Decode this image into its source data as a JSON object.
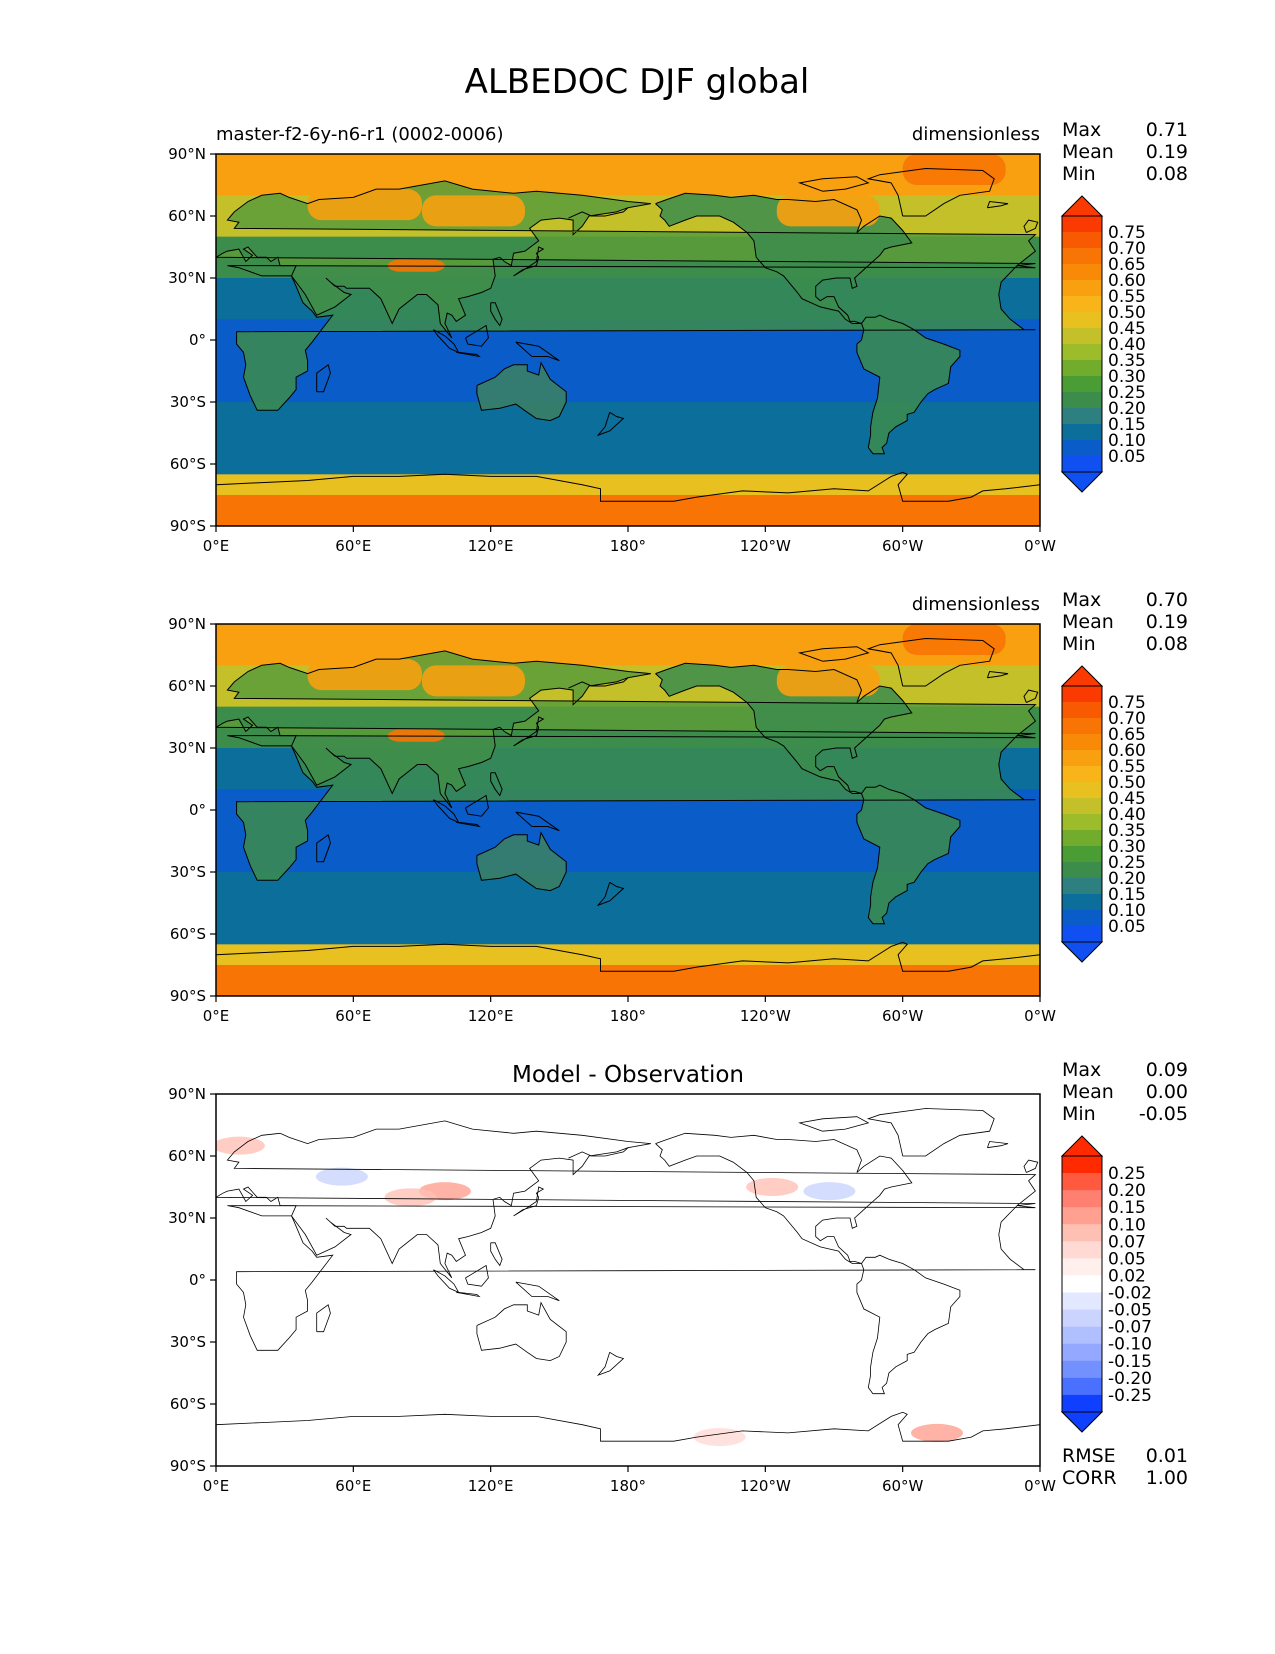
{
  "title": "ALBEDOC DJF global",
  "x_ticks": [
    "0°E",
    "60°E",
    "120°E",
    "180°",
    "120°W",
    "60°W",
    "0°W"
  ],
  "y_ticks": [
    "90°N",
    "60°N",
    "30°N",
    "0°",
    "30°S",
    "60°S",
    "90°S"
  ],
  "stat_labels": {
    "max": "Max",
    "mean": "Mean",
    "min": "Min",
    "rmse": "RMSE",
    "corr": "CORR"
  },
  "colors": {
    "field_scale": [
      "#1050f0",
      "#0a5cc8",
      "#0c6e9a",
      "#2e8080",
      "#3c8c4c",
      "#4a9c34",
      "#72ac2c",
      "#9cbc2a",
      "#c4c02a",
      "#e8c020",
      "#f8b418",
      "#f8a010",
      "#f88a08",
      "#f87404",
      "#f85a02",
      "#fa3a00"
    ],
    "diff_scale": [
      "#1040ff",
      "#4a70ff",
      "#7390ff",
      "#94a8ff",
      "#b0c0ff",
      "#cad4ff",
      "#e2e8ff",
      "#ffffff",
      "#fff0ee",
      "#ffdad4",
      "#ffc0b4",
      "#ffa090",
      "#ff8070",
      "#ff5a40",
      "#ff2a00"
    ]
  },
  "chart_data": [
    {
      "type": "heatmap",
      "panel": "model",
      "left_title": "master-f2-6y-n6-r1 (0002-0006)",
      "right_title": "dimensionless",
      "stats": {
        "max": "0.71",
        "mean": "0.19",
        "min": "0.08"
      },
      "colorbar_levels": [
        "0.75",
        "0.70",
        "0.65",
        "0.60",
        "0.55",
        "0.50",
        "0.45",
        "0.40",
        "0.35",
        "0.30",
        "0.25",
        "0.20",
        "0.15",
        "0.10",
        "0.05"
      ],
      "x_range": [
        0,
        360
      ],
      "y_range": [
        -90,
        90
      ],
      "zonal_profile": [
        {
          "lat": 80,
          "value": 0.55
        },
        {
          "lat": 60,
          "value": 0.4
        },
        {
          "lat": 40,
          "value": 0.2
        },
        {
          "lat": 20,
          "value": 0.12
        },
        {
          "lat": 0,
          "value": 0.08
        },
        {
          "lat": -20,
          "value": 0.08
        },
        {
          "lat": -40,
          "value": 0.1
        },
        {
          "lat": -60,
          "value": 0.12
        },
        {
          "lat": -70,
          "value": 0.45
        },
        {
          "lat": -80,
          "value": 0.65
        }
      ]
    },
    {
      "type": "heatmap",
      "panel": "observation",
      "left_title": "",
      "right_title": "dimensionless",
      "stats": {
        "max": "0.70",
        "mean": "0.19",
        "min": "0.08"
      },
      "colorbar_levels": [
        "0.75",
        "0.70",
        "0.65",
        "0.60",
        "0.55",
        "0.50",
        "0.45",
        "0.40",
        "0.35",
        "0.30",
        "0.25",
        "0.20",
        "0.15",
        "0.10",
        "0.05"
      ],
      "x_range": [
        0,
        360
      ],
      "y_range": [
        -90,
        90
      ],
      "zonal_profile": [
        {
          "lat": 80,
          "value": 0.55
        },
        {
          "lat": 60,
          "value": 0.4
        },
        {
          "lat": 40,
          "value": 0.2
        },
        {
          "lat": 20,
          "value": 0.12
        },
        {
          "lat": 0,
          "value": 0.08
        },
        {
          "lat": -20,
          "value": 0.08
        },
        {
          "lat": -40,
          "value": 0.1
        },
        {
          "lat": -60,
          "value": 0.12
        },
        {
          "lat": -70,
          "value": 0.45
        },
        {
          "lat": -80,
          "value": 0.65
        }
      ]
    },
    {
      "type": "heatmap",
      "panel": "difference",
      "center_title": "Model - Observation",
      "stats": {
        "max": "0.09",
        "mean": "0.00",
        "min": "-0.05",
        "rmse": "0.01",
        "corr": "1.00"
      },
      "colorbar_levels": [
        "0.25",
        "0.20",
        "0.15",
        "0.10",
        "0.07",
        "0.05",
        "0.02",
        "-0.02",
        "-0.05",
        "-0.07",
        "-0.10",
        "-0.15",
        "-0.20",
        "-0.25"
      ],
      "x_range": [
        0,
        360
      ],
      "y_range": [
        -90,
        90
      ],
      "anomalies": [
        {
          "lon": 100,
          "lat": 43,
          "value": 0.05
        },
        {
          "lon": 85,
          "lat": 40,
          "value": 0.03
        },
        {
          "lon": 10,
          "lat": 65,
          "value": 0.03
        },
        {
          "lon": 55,
          "lat": 50,
          "value": -0.02
        },
        {
          "lon": 243,
          "lat": 45,
          "value": 0.03
        },
        {
          "lon": 268,
          "lat": 43,
          "value": -0.02
        },
        {
          "lon": 315,
          "lat": -74,
          "value": 0.05
        },
        {
          "lon": 220,
          "lat": -76,
          "value": 0.02
        }
      ]
    }
  ]
}
